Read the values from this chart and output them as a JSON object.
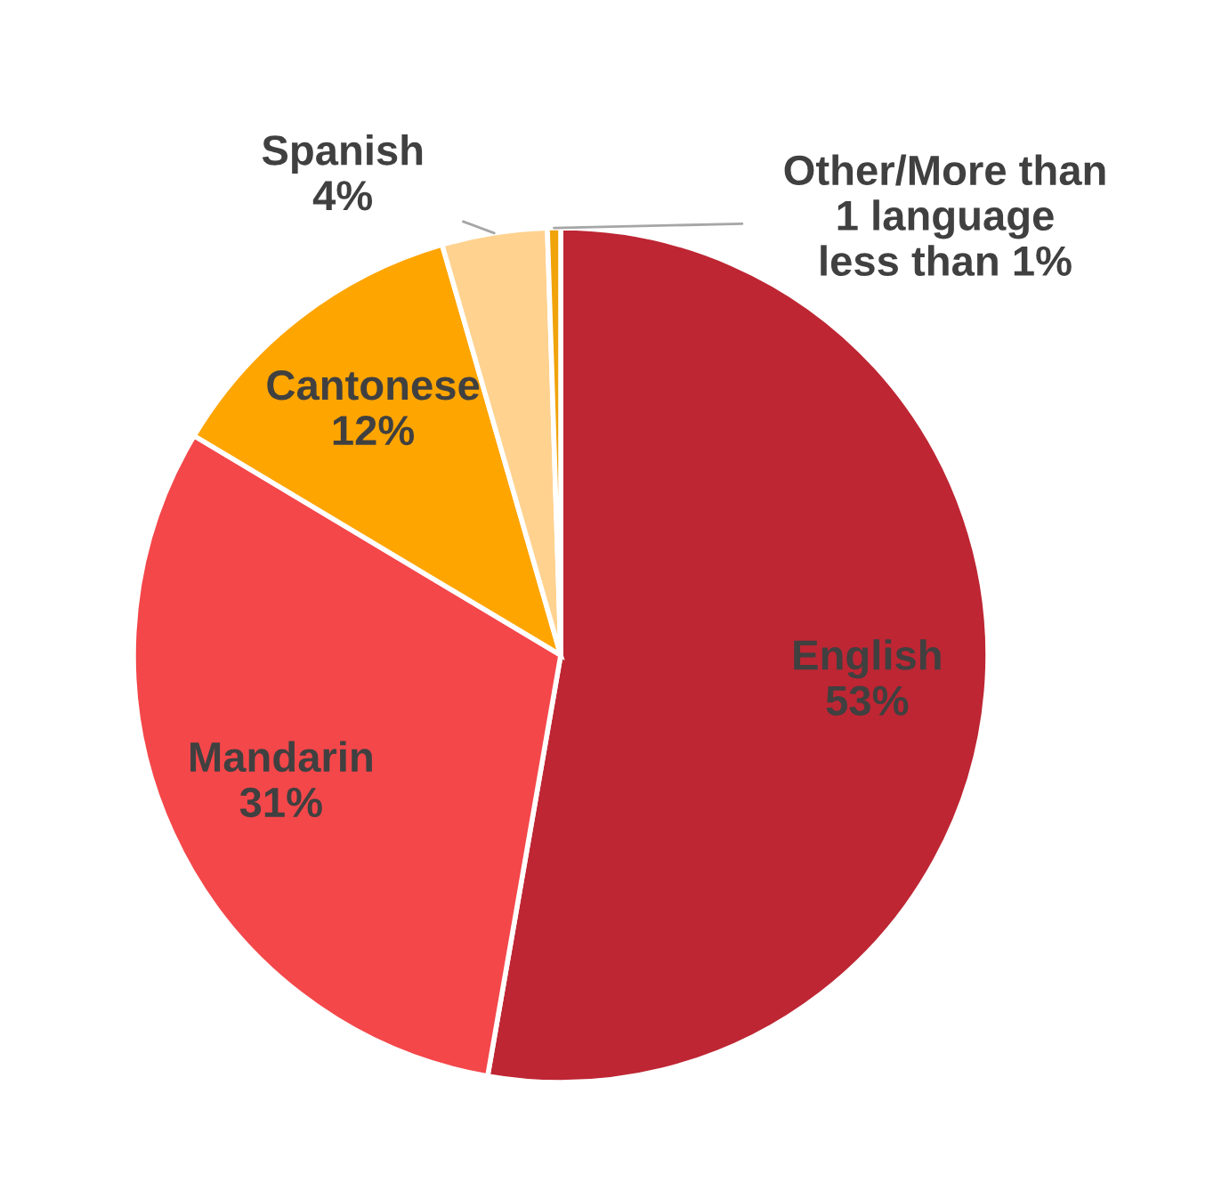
{
  "chart_data": {
    "type": "pie",
    "categories": [
      "English",
      "Mandarin",
      "Cantonese",
      "Spanish",
      "Other/More than\n1 language"
    ],
    "values": [
      53,
      31,
      12,
      4,
      0.5
    ],
    "value_labels": [
      "53%",
      "31%",
      "12%",
      "4%",
      "less than 1%"
    ],
    "colors": [
      "#be2633",
      "#f4474a",
      "#ffa500",
      "#ffd28f",
      "#f0a30a"
    ],
    "legend": false
  }
}
